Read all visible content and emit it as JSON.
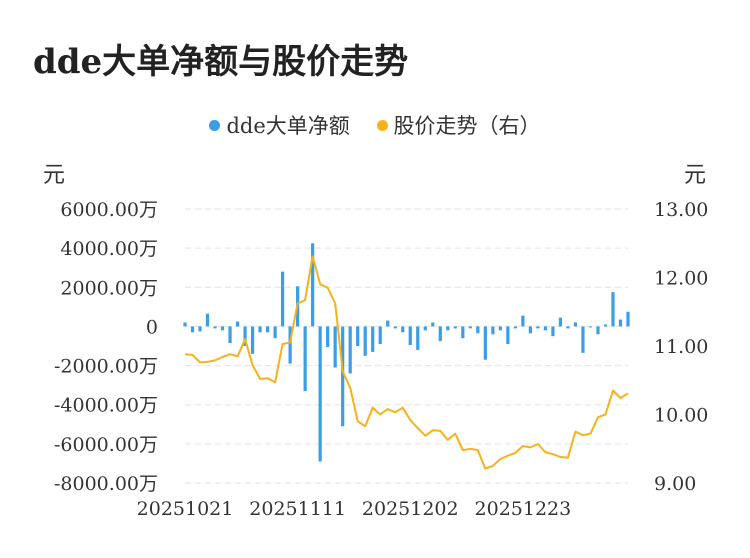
{
  "title": "dde大单净额与股价走势",
  "chart_data": {
    "type": "bar+line",
    "legend": [
      {
        "name": "dde大单净额",
        "color": "#3a9de8"
      },
      {
        "name": "股价走势（右）",
        "color": "#f5b21a"
      }
    ],
    "left_unit": "元",
    "right_unit": "元",
    "left_ticks": [
      "6000.00万",
      "4000.00万",
      "2000.00万",
      "0",
      "-2000.00万",
      "-4000.00万",
      "-6000.00万",
      "-8000.00万"
    ],
    "left_range": [
      -8000,
      6000
    ],
    "right_ticks": [
      "13.00",
      "12.00",
      "11.00",
      "10.00",
      "9.00"
    ],
    "right_range": [
      9,
      13
    ],
    "x_ticks": [
      {
        "label": "20251021",
        "index": 0
      },
      {
        "label": "20251111",
        "index": 15
      },
      {
        "label": "20251202",
        "index": 30
      },
      {
        "label": "20251223",
        "index": 45
      }
    ],
    "dde_net": [
      200,
      -300,
      -250,
      650,
      -100,
      -200,
      -850,
      250,
      -1000,
      -1400,
      -300,
      -300,
      -600,
      2800,
      -1900,
      2050,
      -3300,
      4250,
      -6900,
      -1050,
      -2100,
      -5100,
      -2400,
      -1000,
      -1500,
      -1300,
      -900,
      300,
      -100,
      -300,
      -950,
      -1200,
      -200,
      200,
      -750,
      -200,
      -100,
      -600,
      -100,
      -350,
      -1700,
      -400,
      -200,
      -900,
      -100,
      550,
      -350,
      -100,
      -200,
      -500,
      450,
      -100,
      200,
      -1350,
      -50,
      -400,
      100,
      1750,
      350,
      750
    ],
    "price": [
      10.88,
      10.87,
      10.76,
      10.77,
      10.79,
      10.84,
      10.88,
      10.85,
      11.1,
      10.72,
      10.52,
      10.53,
      10.47,
      11.03,
      11.05,
      11.62,
      11.67,
      12.31,
      11.9,
      11.85,
      11.62,
      10.63,
      10.39,
      9.9,
      9.83,
      10.1,
      10.0,
      10.08,
      10.03,
      10.1,
      9.92,
      9.8,
      9.69,
      9.77,
      9.76,
      9.63,
      9.72,
      9.48,
      9.5,
      9.48,
      9.21,
      9.25,
      9.35,
      9.4,
      9.44,
      9.54,
      9.52,
      9.57,
      9.45,
      9.42,
      9.38,
      9.37,
      9.75,
      9.7,
      9.72,
      9.96,
      10.0,
      10.35,
      10.24,
      10.31
    ]
  }
}
